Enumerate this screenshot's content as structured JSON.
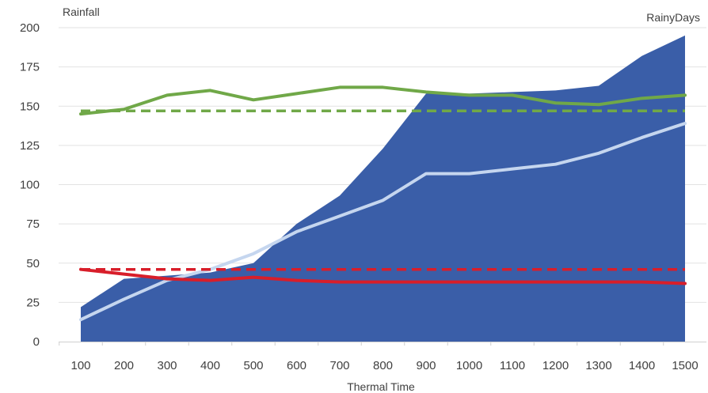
{
  "chart_data": {
    "type": "area",
    "xlabel": "Thermal Time",
    "ylabel": "Rainfall",
    "secondary_label_top": "",
    "secondary_label": "RainyDays",
    "ylim": [
      0,
      200
    ],
    "yticks": [
      0,
      25,
      50,
      75,
      100,
      125,
      150,
      175,
      200
    ],
    "x": [
      100,
      200,
      300,
      400,
      500,
      600,
      700,
      800,
      900,
      1000,
      1100,
      1200,
      1300,
      1400,
      1500
    ],
    "grid": true,
    "legend": "none",
    "series": [
      {
        "kind": "area",
        "color": "#3a5ea8",
        "values": [
          22,
          40,
          42,
          44,
          50,
          75,
          93,
          123,
          158,
          158,
          159,
          160,
          163,
          182,
          195
        ]
      },
      {
        "kind": "line",
        "color": "#c5d6ef",
        "values": [
          14,
          27,
          39,
          46,
          56,
          70,
          80,
          90,
          107,
          107,
          110,
          113,
          120,
          130,
          139
        ]
      },
      {
        "kind": "line",
        "color": "#70a848",
        "values": [
          145,
          148,
          157,
          160,
          154,
          158,
          162,
          162,
          159,
          157,
          157,
          152,
          151,
          155,
          157
        ]
      },
      {
        "kind": "dashed-line",
        "color": "#70a848",
        "values": [
          147,
          147,
          147,
          147,
          147,
          147,
          147,
          147,
          147,
          147,
          147,
          147,
          147,
          147,
          147
        ]
      },
      {
        "kind": "line",
        "color": "#d81e2a",
        "values": [
          46,
          43,
          40,
          39,
          41,
          39,
          38,
          38,
          38,
          38,
          38,
          38,
          38,
          38,
          37
        ]
      },
      {
        "kind": "dashed-line",
        "color": "#d81e2a",
        "values": [
          46,
          46,
          46,
          46,
          46,
          46,
          46,
          46,
          46,
          46,
          46,
          46,
          46,
          46,
          46
        ]
      }
    ]
  }
}
